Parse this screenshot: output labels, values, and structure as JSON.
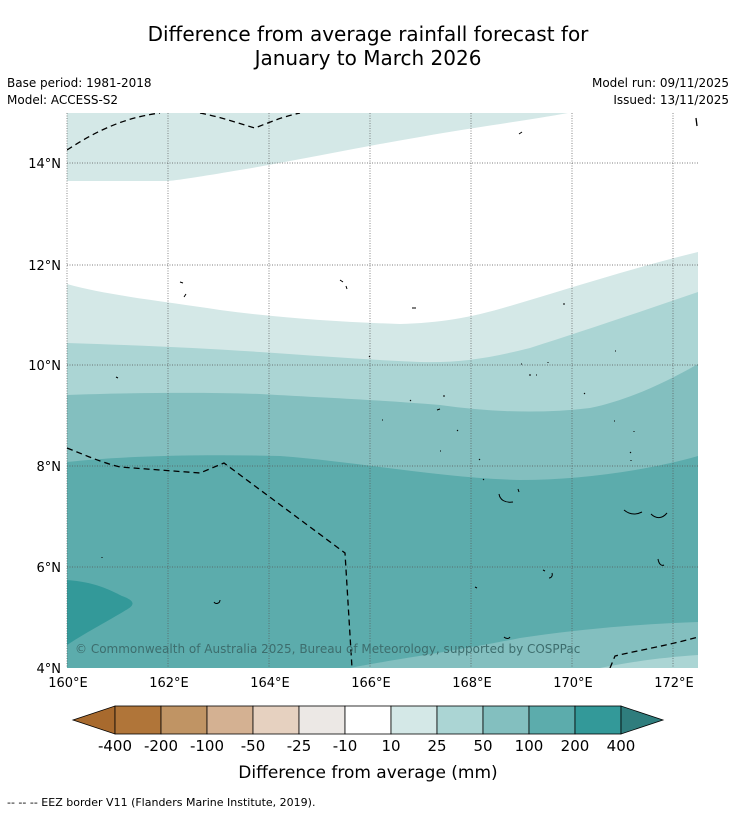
{
  "title": {
    "line1": "Difference from average rainfall forecast for",
    "line2": "January to March 2026"
  },
  "meta": {
    "base_period": "Base period: 1981-2018",
    "model": "Model: ACCESS-S2",
    "model_run": "Model run: 09/11/2025",
    "issued": "Issued: 13/11/2025"
  },
  "map": {
    "lat_labels": [
      "14°N",
      "12°N",
      "10°N",
      "8°N",
      "6°N",
      "4°N"
    ],
    "lon_labels": [
      "160°E",
      "162°E",
      "164°E",
      "166°E",
      "168°E",
      "170°E",
      "172°E"
    ],
    "copyright": "© Commonwealth of Australia 2025, Bureau of Meteorology, supported by COSPPac"
  },
  "colorbar": {
    "ticks": [
      "-400",
      "-200",
      "-100",
      "-50",
      "-25",
      "-10",
      "10",
      "25",
      "50",
      "100",
      "200",
      "400"
    ],
    "colors": [
      "#a86a2e",
      "#b07539",
      "#c09464",
      "#d4b192",
      "#e6d1c0",
      "#ece8e5",
      "#ffffff",
      "#d4e8e7",
      "#abd5d4",
      "#83bfbf",
      "#5cacac",
      "#339999",
      "#2f7d7d"
    ],
    "label": "Difference from average (mm)"
  },
  "legend": {
    "eez": "--  --  -- EEZ border V11 (Flanders Marine Institute, 2019)."
  }
}
